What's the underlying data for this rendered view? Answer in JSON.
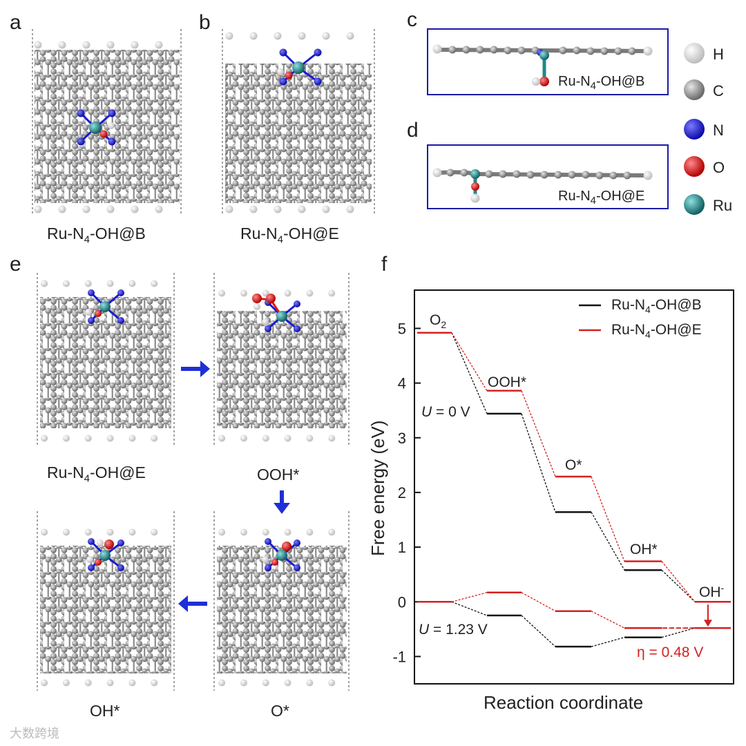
{
  "panel_labels": {
    "a": "a",
    "b": "b",
    "c": "c",
    "d": "d",
    "e": "e",
    "f": "f"
  },
  "captions": {
    "a_prefix": "Ru-N",
    "a_sub": "4",
    "a_suffix": "-OH@B",
    "b_prefix": "Ru-N",
    "b_sub": "4",
    "b_suffix": "-OH@E",
    "c_prefix": "Ru-N",
    "c_sub": "4",
    "c_suffix": "-OH@B",
    "d_prefix": "Ru-N",
    "d_sub": "4",
    "d_suffix": "-OH@E",
    "e1_prefix": "Ru-N",
    "e1_sub": "4",
    "e1_suffix": "-OH@E",
    "e2": "OOH*",
    "e3": "O*",
    "e4": "OH*"
  },
  "element_legend": [
    {
      "symbol": "H",
      "color": "#f2f2f2"
    },
    {
      "symbol": "C",
      "color": "#8c8c8c"
    },
    {
      "symbol": "N",
      "color": "#1a1ad6"
    },
    {
      "symbol": "O",
      "color": "#e01818"
    },
    {
      "symbol": "Ru",
      "color": "#1e8a8a"
    }
  ],
  "colors": {
    "black_series": "#111111",
    "red_series": "#d42020",
    "arrow": "#1f2fd6",
    "frame": "#1a1aa8"
  },
  "chart_data": {
    "type": "line",
    "title": "",
    "xlabel": "Reaction coordinate",
    "ylabel": "Free energy (eV)",
    "ylim": [
      -1.5,
      5.7
    ],
    "yticks": [
      -1,
      0,
      1,
      2,
      3,
      4,
      5
    ],
    "ytick_labels": [
      "-1",
      "0",
      "1",
      "2",
      "3",
      "4",
      "5"
    ],
    "steps": [
      "O2",
      "OOH*",
      "O*",
      "OH*",
      "OH-"
    ],
    "step_labels": {
      "O2_main": "O",
      "O2_sub": "2",
      "OOH": "OOH*",
      "O": "O*",
      "OH": "OH*",
      "OHm_main": "OH",
      "OHm_sup": "-"
    },
    "series": [
      {
        "name": "Ru-N4-OH@B",
        "legend_prefix": "Ru-N",
        "legend_sub": "4",
        "legend_suffix": "-OH@B",
        "color": "#111111",
        "U0": [
          4.92,
          3.44,
          1.64,
          0.58,
          0.0
        ],
        "U123": [
          0.0,
          -0.25,
          -0.82,
          -0.65,
          -0.48
        ]
      },
      {
        "name": "Ru-N4-OH@E",
        "legend_prefix": "Ru-N",
        "legend_sub": "4",
        "legend_suffix": "-OH@E",
        "color": "#d42020",
        "U0": [
          4.92,
          3.86,
          2.29,
          0.74,
          0.0
        ],
        "U123": [
          0.0,
          0.17,
          -0.17,
          -0.48,
          -0.48
        ]
      }
    ],
    "annotations": {
      "U0_var": "U",
      "U0_rest": " = 0 V",
      "U123_var": "U",
      "U123_rest": " = 1.23 V",
      "eta": "η = 0.48 V",
      "overpotential_value": 0.48
    }
  },
  "watermark": "大数跨境"
}
